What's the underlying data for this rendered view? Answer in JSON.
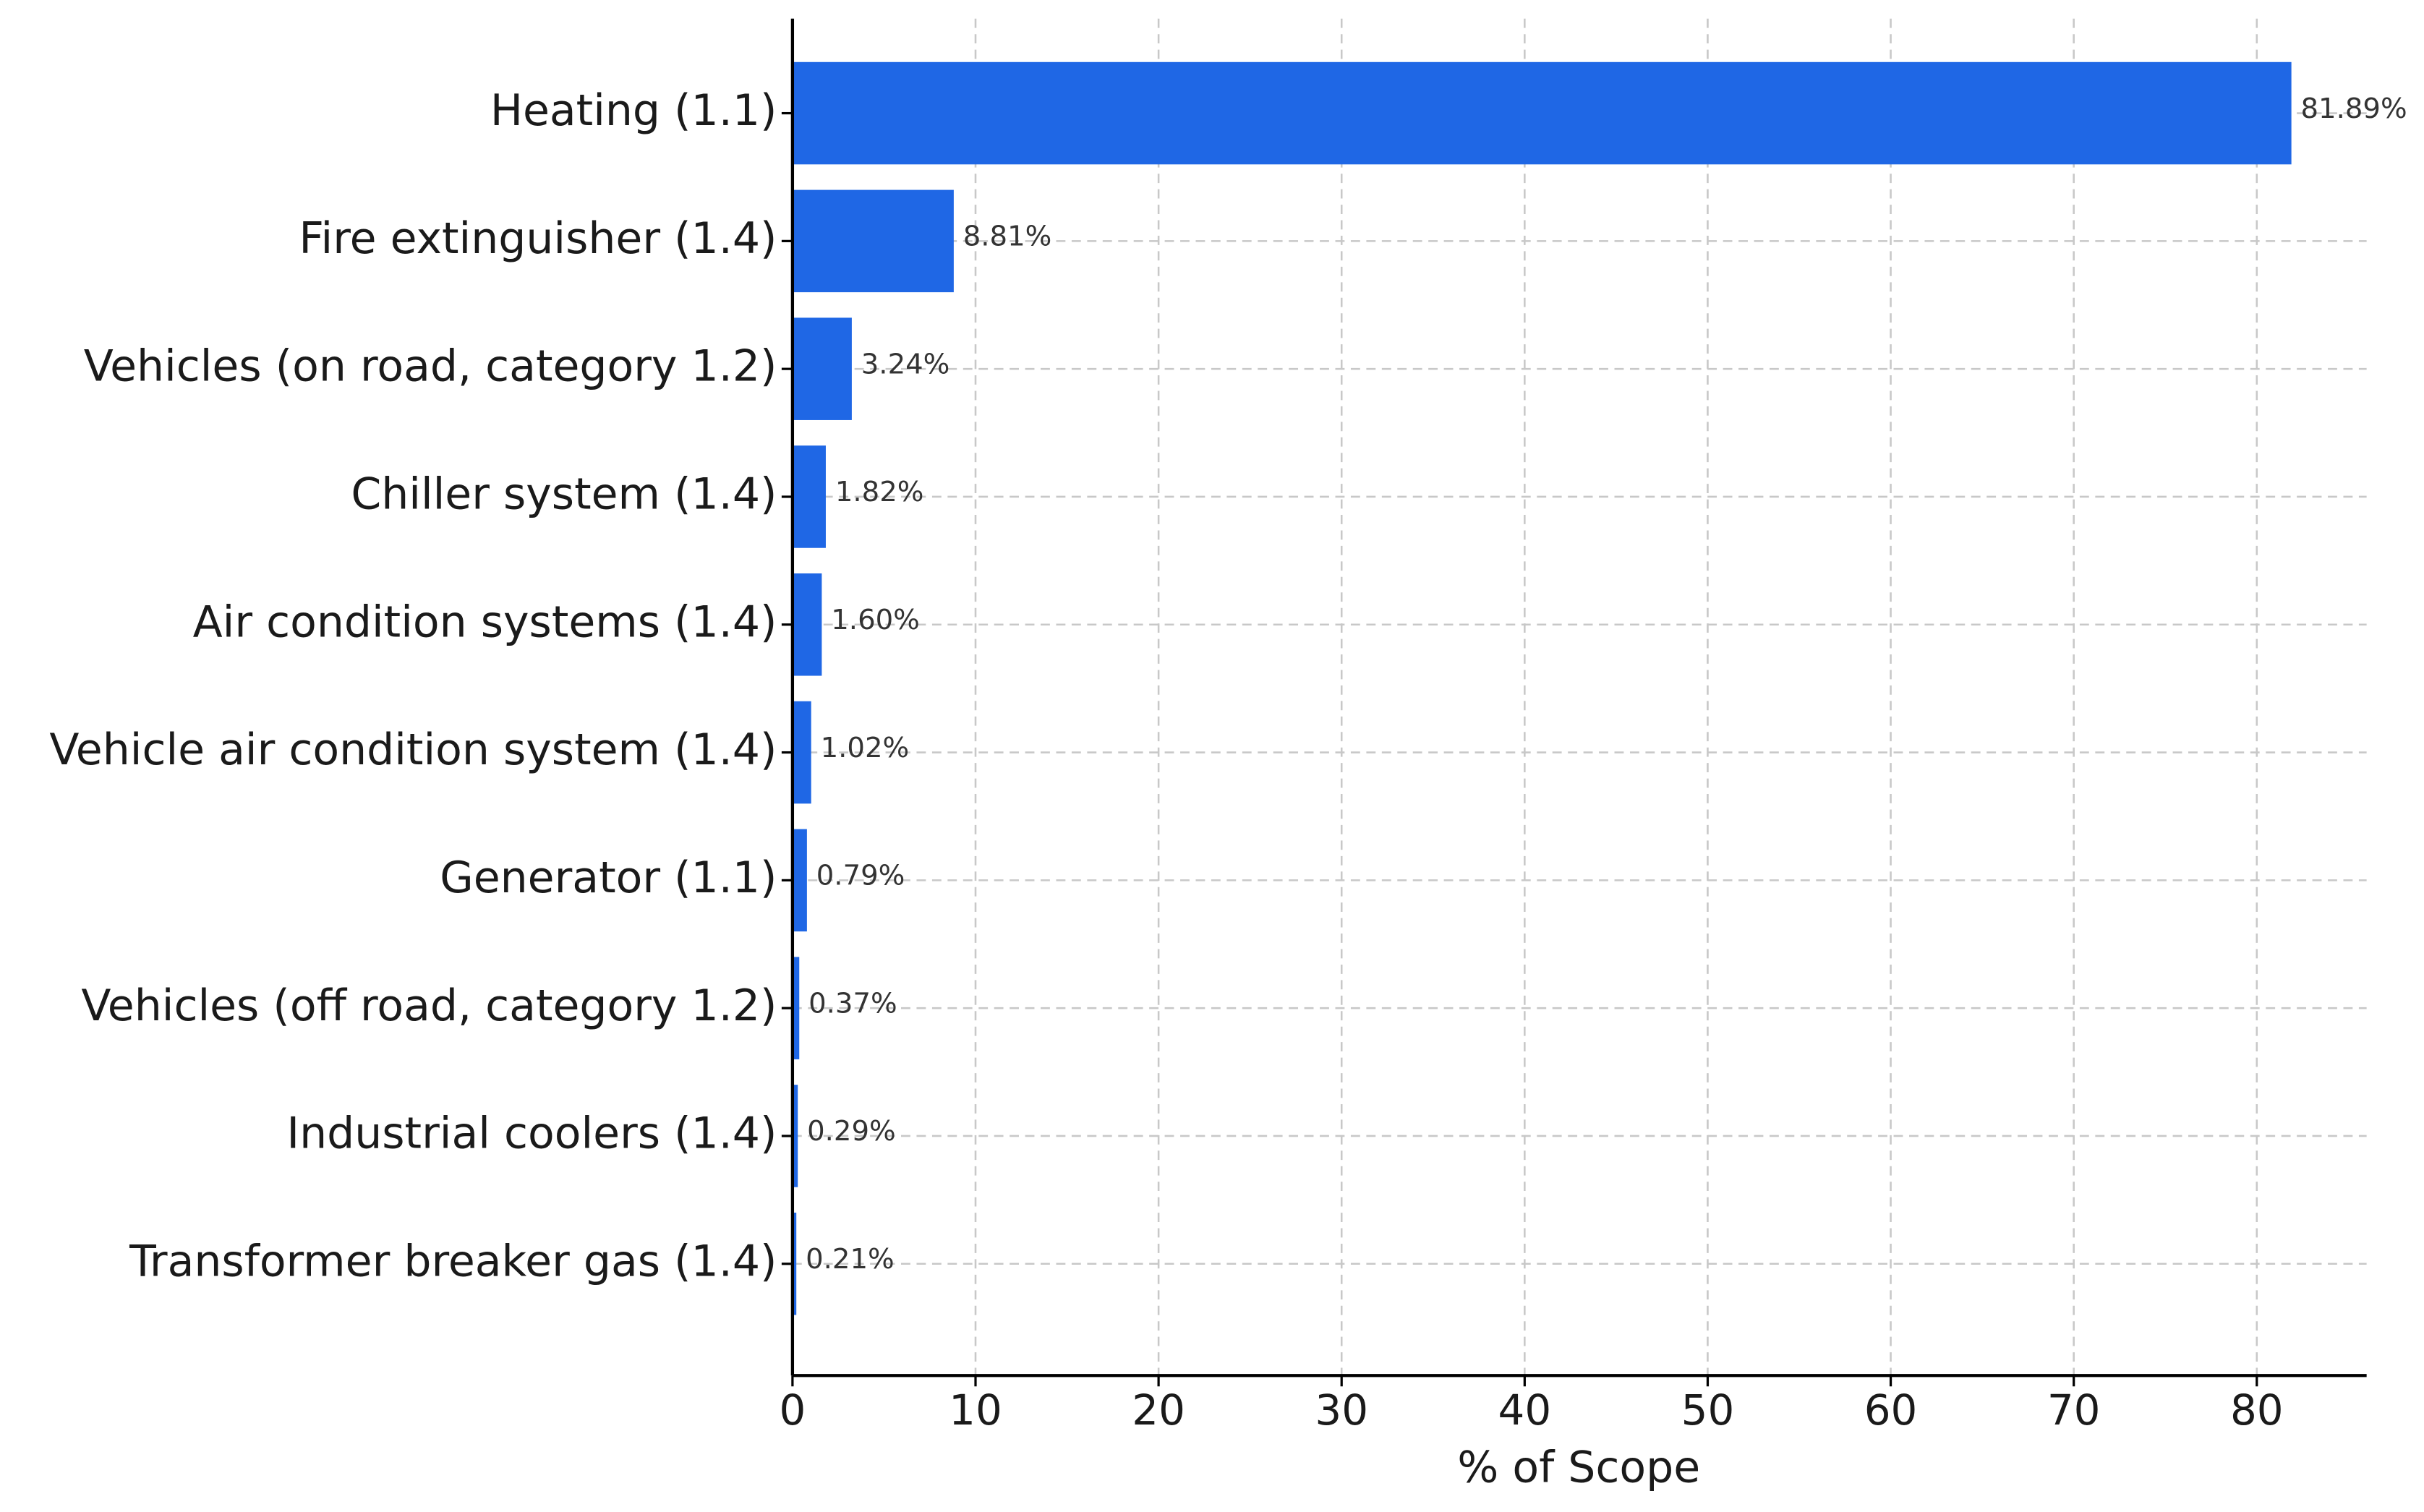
{
  "chart_data": {
    "type": "barh",
    "categories": [
      "Heating (1.1)",
      "Fire extinguisher (1.4)",
      "Vehicles (on road, category 1.2)",
      "Chiller system (1.4)",
      "Air condition systems (1.4)",
      "Vehicle air condition system (1.4)",
      "Generator (1.1)",
      "Vehicles (off road, category 1.2)",
      "Industrial coolers (1.4)",
      "Transformer breaker gas (1.4)"
    ],
    "values": [
      81.89,
      8.81,
      3.24,
      1.82,
      1.6,
      1.02,
      0.79,
      0.37,
      0.29,
      0.21
    ],
    "value_labels": [
      "81.89%",
      "8.81%",
      "3.24%",
      "1.82%",
      "1.60%",
      "1.02%",
      "0.79%",
      "0.37%",
      "0.29%",
      "0.21%"
    ],
    "color": "#1f67e5",
    "xlabel": "% of Scope",
    "xlim": [
      0,
      86
    ],
    "xticks": [
      0,
      10,
      20,
      30,
      40,
      50,
      60,
      70,
      80
    ],
    "grid": true
  }
}
